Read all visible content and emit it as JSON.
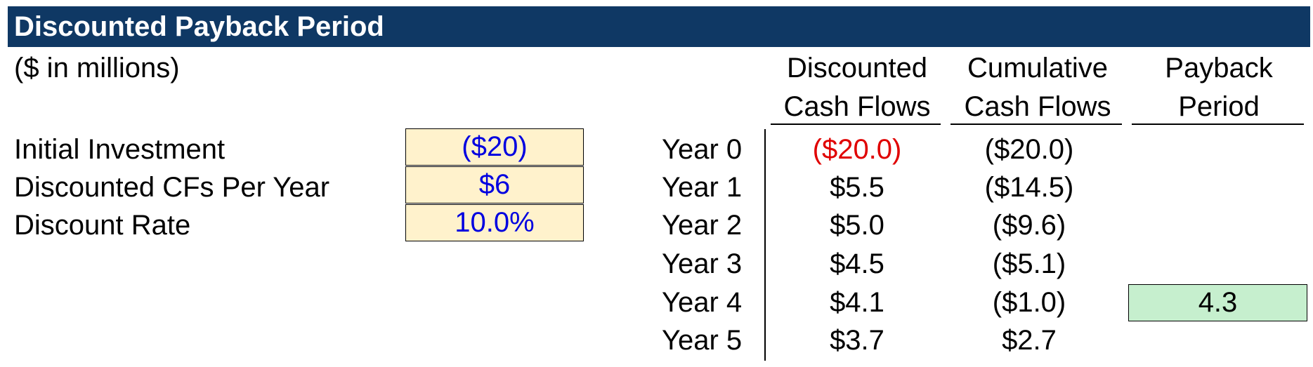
{
  "title": "Discounted Payback Period",
  "units": "($ in millions)",
  "inputs": [
    {
      "label": "Initial Investment",
      "value": "($20)"
    },
    {
      "label": "Discounted CFs Per Year",
      "value": "$6"
    },
    {
      "label": "Discount Rate",
      "value": "10.0%"
    }
  ],
  "headers": {
    "discounted_line1": "Discounted",
    "discounted_line2": "Cash Flows",
    "cumulative_line1": "Cumulative",
    "cumulative_line2": "Cash Flows",
    "payback_line1": "Payback",
    "payback_line2": "Period"
  },
  "rows": [
    {
      "year": "Year 0",
      "discounted": "($20.0)",
      "cumulative": "($20.0)"
    },
    {
      "year": "Year 1",
      "discounted": "$5.5",
      "cumulative": "($14.5)"
    },
    {
      "year": "Year 2",
      "discounted": "$5.0",
      "cumulative": "($9.6)"
    },
    {
      "year": "Year 3",
      "discounted": "$4.5",
      "cumulative": "($5.1)"
    },
    {
      "year": "Year 4",
      "discounted": "$4.1",
      "cumulative": "($1.0)"
    },
    {
      "year": "Year 5",
      "discounted": "$3.7",
      "cumulative": "$2.7"
    }
  ],
  "payback_period": "4.3",
  "colors": {
    "title_bg": "#0f3864",
    "input_fill": "#fff2cc",
    "input_text": "#0000e0",
    "negative_text": "#e00000",
    "result_fill": "#c6efce"
  }
}
